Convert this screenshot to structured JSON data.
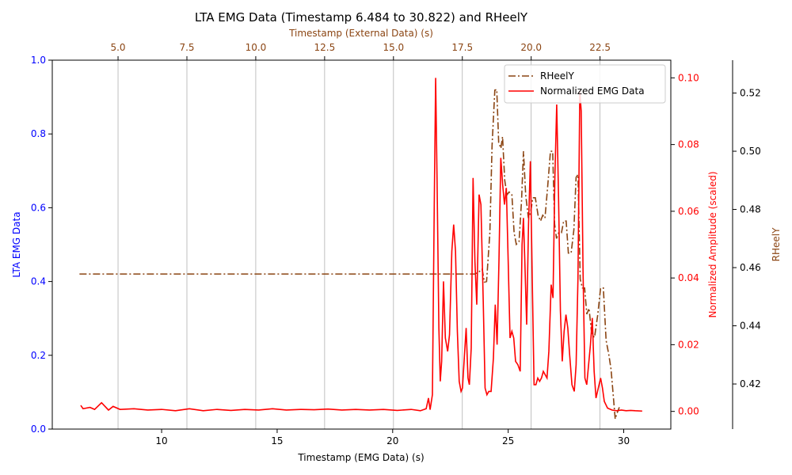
{
  "chart_data": {
    "type": "line",
    "title": "LTA EMG Data (Timestamp 6.484 to 30.822) and RHeelY",
    "bottom_axis": {
      "label": "Timestamp (EMG Data) (s)",
      "range": [
        5.267,
        32.039
      ],
      "ticks": [
        "10",
        "15",
        "20",
        "25",
        "30"
      ],
      "tick_values": [
        10,
        15,
        20,
        25,
        30
      ]
    },
    "top_axis": {
      "label": "Timestamp (External Data) (s)",
      "range": [
        2.612,
        25.07
      ],
      "ticks": [
        "5.0",
        "7.5",
        "10.0",
        "12.5",
        "15.0",
        "17.5",
        "20.0",
        "22.5"
      ],
      "tick_values": [
        5.0,
        7.5,
        10.0,
        12.5,
        15.0,
        17.5,
        20.0,
        22.5
      ],
      "grid": true
    },
    "left_axis": {
      "label": "LTA EMG Data",
      "range": [
        0,
        1
      ],
      "ticks": [
        "0.0",
        "0.2",
        "0.4",
        "0.6",
        "0.8",
        "1.0"
      ],
      "tick_values": [
        0,
        0.2,
        0.4,
        0.6,
        0.8,
        1.0
      ],
      "color": "#0000ff"
    },
    "right_axis_1": {
      "label": "Normalized Amplitude (scaled)",
      "range": [
        -0.0053,
        0.1053
      ],
      "ticks": [
        "0.00",
        "0.02",
        "0.04",
        "0.06",
        "0.08",
        "0.10"
      ],
      "tick_values": [
        0,
        0.02,
        0.04,
        0.06,
        0.08,
        0.1
      ],
      "color": "#ff0000"
    },
    "right_axis_2": {
      "label": "RHeelY",
      "range": [
        0.4045,
        0.5313
      ],
      "ticks": [
        "0.42",
        "0.44",
        "0.46",
        "0.48",
        "0.50",
        "0.52"
      ],
      "tick_values": [
        0.42,
        0.44,
        0.46,
        0.48,
        0.5,
        0.52
      ],
      "color": "#8b4513"
    },
    "legend": {
      "position": "top-right",
      "entries": [
        "RHeelY",
        "Normalized EMG Data"
      ]
    },
    "series": [
      {
        "name": "RHeelY",
        "axis": "top/right_axis_2",
        "color": "#8b4513",
        "style": "dash-dot",
        "points": [
          [
            3.6,
            0.4578
          ],
          [
            17.95,
            0.4578
          ],
          [
            18.1,
            0.4585
          ],
          [
            18.22,
            0.4595
          ],
          [
            18.3,
            0.455
          ],
          [
            18.38,
            0.4552
          ],
          [
            18.5,
            0.472
          ],
          [
            18.58,
            0.502
          ],
          [
            18.68,
            0.521
          ],
          [
            18.75,
            0.5212
          ],
          [
            18.82,
            0.503
          ],
          [
            18.9,
            0.501
          ],
          [
            18.96,
            0.505
          ],
          [
            19.04,
            0.49
          ],
          [
            19.12,
            0.485
          ],
          [
            19.2,
            0.486
          ],
          [
            19.3,
            0.485
          ],
          [
            19.38,
            0.472
          ],
          [
            19.46,
            0.468
          ],
          [
            19.56,
            0.469
          ],
          [
            19.65,
            0.483
          ],
          [
            19.72,
            0.5
          ],
          [
            19.8,
            0.485
          ],
          [
            19.9,
            0.477
          ],
          [
            19.98,
            0.479
          ],
          [
            20.06,
            0.484
          ],
          [
            20.15,
            0.484
          ],
          [
            20.25,
            0.478
          ],
          [
            20.34,
            0.476
          ],
          [
            20.42,
            0.478
          ],
          [
            20.5,
            0.477
          ],
          [
            20.6,
            0.488
          ],
          [
            20.7,
            0.5
          ],
          [
            20.78,
            0.5
          ],
          [
            20.85,
            0.475
          ],
          [
            20.92,
            0.47
          ],
          [
            21.0,
            0.472
          ],
          [
            21.1,
            0.472
          ],
          [
            21.18,
            0.476
          ],
          [
            21.27,
            0.476
          ],
          [
            21.35,
            0.465
          ],
          [
            21.45,
            0.465
          ],
          [
            21.55,
            0.473
          ],
          [
            21.63,
            0.491
          ],
          [
            21.7,
            0.492
          ],
          [
            21.78,
            0.456
          ],
          [
            21.86,
            0.453
          ],
          [
            21.94,
            0.453
          ],
          [
            22.02,
            0.444
          ],
          [
            22.1,
            0.446
          ],
          [
            22.2,
            0.437
          ],
          [
            22.3,
            0.436
          ],
          [
            22.42,
            0.444
          ],
          [
            22.52,
            0.453
          ],
          [
            22.62,
            0.453
          ],
          [
            22.72,
            0.435
          ],
          [
            22.82,
            0.43
          ],
          [
            22.9,
            0.425
          ],
          [
            22.98,
            0.416
          ],
          [
            23.05,
            0.408
          ],
          [
            23.12,
            0.41
          ],
          [
            23.2,
            0.412
          ]
        ]
      },
      {
        "name": "Normalized EMG Data",
        "axis": "bottom/right_axis_1",
        "color": "#ff0000",
        "style": "solid",
        "points": [
          [
            6.5,
            0.0018
          ],
          [
            6.6,
            0.0008
          ],
          [
            6.9,
            0.0012
          ],
          [
            7.1,
            0.0006
          ],
          [
            7.4,
            0.0026
          ],
          [
            7.7,
            0.0004
          ],
          [
            7.9,
            0.0015
          ],
          [
            8.2,
            0.0006
          ],
          [
            8.8,
            0.0008
          ],
          [
            9.4,
            0.0004
          ],
          [
            10.0,
            0.0006
          ],
          [
            10.6,
            0.0002
          ],
          [
            11.2,
            0.0008
          ],
          [
            11.8,
            0.0002
          ],
          [
            12.4,
            0.0006
          ],
          [
            13.0,
            0.0003
          ],
          [
            13.6,
            0.0006
          ],
          [
            14.2,
            0.0004
          ],
          [
            14.8,
            0.0008
          ],
          [
            15.4,
            0.0004
          ],
          [
            16.0,
            0.0006
          ],
          [
            16.6,
            0.0005
          ],
          [
            17.2,
            0.0007
          ],
          [
            17.8,
            0.0004
          ],
          [
            18.4,
            0.0006
          ],
          [
            19.0,
            0.0004
          ],
          [
            19.6,
            0.0006
          ],
          [
            20.2,
            0.0003
          ],
          [
            20.8,
            0.0006
          ],
          [
            21.2,
            0.0002
          ],
          [
            21.45,
            0.0008
          ],
          [
            21.55,
            0.004
          ],
          [
            21.62,
            0.0005
          ],
          [
            21.72,
            0.005
          ],
          [
            21.8,
            0.062
          ],
          [
            21.86,
            0.1
          ],
          [
            21.92,
            0.07
          ],
          [
            22.0,
            0.025
          ],
          [
            22.06,
            0.009
          ],
          [
            22.12,
            0.015
          ],
          [
            22.2,
            0.039
          ],
          [
            22.28,
            0.022
          ],
          [
            22.38,
            0.018
          ],
          [
            22.46,
            0.023
          ],
          [
            22.56,
            0.048
          ],
          [
            22.64,
            0.056
          ],
          [
            22.72,
            0.048
          ],
          [
            22.8,
            0.024
          ],
          [
            22.88,
            0.009
          ],
          [
            22.96,
            0.006
          ],
          [
            23.02,
            0.007
          ],
          [
            23.1,
            0.016
          ],
          [
            23.18,
            0.025
          ],
          [
            23.26,
            0.01
          ],
          [
            23.32,
            0.008
          ],
          [
            23.4,
            0.019
          ],
          [
            23.48,
            0.07
          ],
          [
            23.56,
            0.045
          ],
          [
            23.64,
            0.032
          ],
          [
            23.74,
            0.065
          ],
          [
            23.82,
            0.062
          ],
          [
            23.92,
            0.033
          ],
          [
            24.0,
            0.007
          ],
          [
            24.08,
            0.005
          ],
          [
            24.16,
            0.006
          ],
          [
            24.26,
            0.006
          ],
          [
            24.36,
            0.016
          ],
          [
            24.44,
            0.032
          ],
          [
            24.52,
            0.02
          ],
          [
            24.6,
            0.045
          ],
          [
            24.68,
            0.076
          ],
          [
            24.76,
            0.068
          ],
          [
            24.84,
            0.062
          ],
          [
            24.92,
            0.067
          ],
          [
            25.0,
            0.045
          ],
          [
            25.08,
            0.022
          ],
          [
            25.16,
            0.024
          ],
          [
            25.24,
            0.022
          ],
          [
            25.32,
            0.015
          ],
          [
            25.42,
            0.014
          ],
          [
            25.52,
            0.012
          ],
          [
            25.6,
            0.05
          ],
          [
            25.66,
            0.058
          ],
          [
            25.72,
            0.045
          ],
          [
            25.8,
            0.026
          ],
          [
            25.88,
            0.056
          ],
          [
            25.96,
            0.075
          ],
          [
            26.04,
            0.04
          ],
          [
            26.12,
            0.008
          ],
          [
            26.2,
            0.008
          ],
          [
            26.28,
            0.01
          ],
          [
            26.36,
            0.009
          ],
          [
            26.44,
            0.01
          ],
          [
            26.52,
            0.012
          ],
          [
            26.6,
            0.011
          ],
          [
            26.68,
            0.01
          ],
          [
            26.76,
            0.018
          ],
          [
            26.86,
            0.038
          ],
          [
            26.94,
            0.034
          ],
          [
            27.02,
            0.07
          ],
          [
            27.1,
            0.092
          ],
          [
            27.18,
            0.064
          ],
          [
            27.26,
            0.03
          ],
          [
            27.34,
            0.015
          ],
          [
            27.42,
            0.024
          ],
          [
            27.5,
            0.029
          ],
          [
            27.58,
            0.025
          ],
          [
            27.66,
            0.017
          ],
          [
            27.76,
            0.008
          ],
          [
            27.86,
            0.006
          ],
          [
            27.94,
            0.014
          ],
          [
            28.02,
            0.04
          ],
          [
            28.1,
            0.096
          ],
          [
            28.16,
            0.09
          ],
          [
            28.24,
            0.042
          ],
          [
            28.32,
            0.01
          ],
          [
            28.4,
            0.008
          ],
          [
            28.48,
            0.014
          ],
          [
            28.56,
            0.02
          ],
          [
            28.64,
            0.028
          ],
          [
            28.72,
            0.012
          ],
          [
            28.8,
            0.004
          ],
          [
            28.9,
            0.007
          ],
          [
            29.0,
            0.01
          ],
          [
            29.08,
            0.007
          ],
          [
            29.16,
            0.003
          ],
          [
            29.3,
            0.001
          ],
          [
            29.5,
            0.0004
          ],
          [
            29.7,
            0.0002
          ],
          [
            29.9,
            0.0004
          ],
          [
            30.1,
            0.0002
          ],
          [
            30.3,
            0.0003
          ],
          [
            30.5,
            0.0002
          ],
          [
            30.8,
            0.0001
          ]
        ]
      }
    ]
  }
}
